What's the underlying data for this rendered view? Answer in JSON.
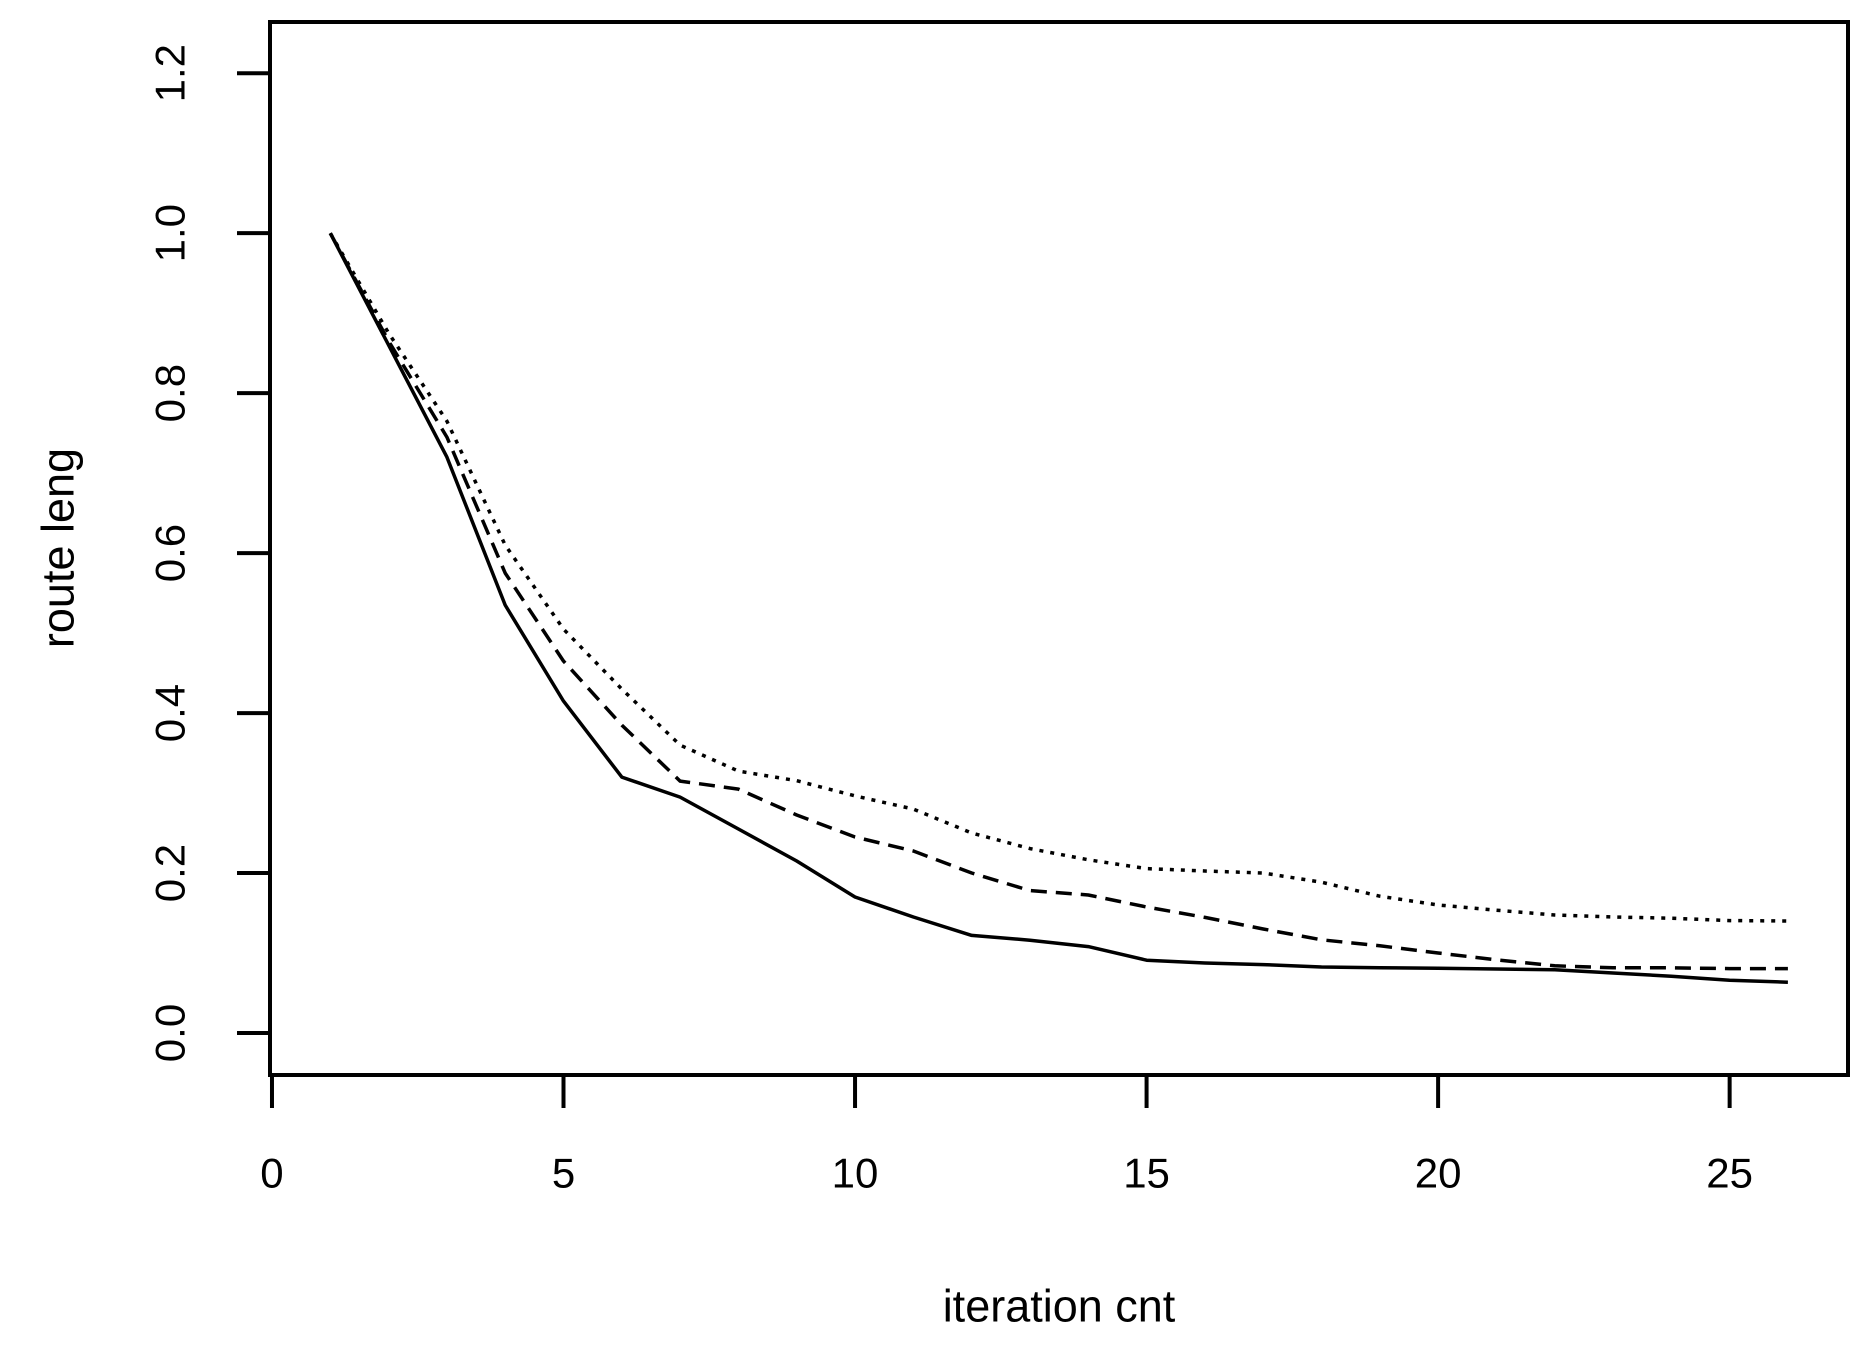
{
  "figure": {
    "background_color": "#ffffff",
    "line_color": "#000000",
    "text_color": "#000000"
  },
  "chart_data": {
    "type": "line",
    "title": "",
    "xlabel": "iteration cnt",
    "ylabel": "route leng",
    "grid": false,
    "legend": false,
    "xlim": [
      -0.034,
      27.03
    ],
    "ylim": [
      -0.0525,
      1.264
    ],
    "x_ticks": [
      0,
      5,
      10,
      15,
      20,
      25
    ],
    "y_ticks": [
      "0.0",
      "0.2",
      "0.4",
      "0.6",
      "0.8",
      "1.0",
      "1.2"
    ],
    "x": [
      1,
      2,
      3,
      4,
      5,
      6,
      7,
      8,
      9,
      10,
      11,
      12,
      13,
      14,
      15,
      16,
      17,
      18,
      19,
      20,
      21,
      22,
      23,
      24,
      25,
      26
    ],
    "series": [
      {
        "name": "solid",
        "line_style": "solid",
        "color": "#000000",
        "values": [
          1.0,
          0.86,
          0.72,
          0.535,
          0.415,
          0.32,
          0.295,
          0.255,
          0.215,
          0.17,
          0.145,
          0.122,
          0.116,
          0.108,
          0.091,
          0.0875,
          0.0855,
          0.0825,
          0.0815,
          0.081,
          0.08,
          0.079,
          0.075,
          0.071,
          0.066,
          0.0635
        ]
      },
      {
        "name": "dashed",
        "line_style": "dashed",
        "color": "#000000",
        "values": [
          1.0,
          0.865,
          0.745,
          0.575,
          0.465,
          0.385,
          0.315,
          0.305,
          0.2725,
          0.245,
          0.2275,
          0.2,
          0.178,
          0.1725,
          0.1575,
          0.1445,
          0.13,
          0.1165,
          0.109,
          0.1,
          0.0915,
          0.084,
          0.0815,
          0.0815,
          0.0805,
          0.0805
        ]
      },
      {
        "name": "dotted",
        "line_style": "dotted",
        "color": "#000000",
        "values": [
          1.0,
          0.875,
          0.765,
          0.61,
          0.505,
          0.43,
          0.36,
          0.3275,
          0.3155,
          0.2965,
          0.28,
          0.25,
          0.2305,
          0.2165,
          0.2055,
          0.2025,
          0.2,
          0.1885,
          0.171,
          0.16,
          0.1535,
          0.1475,
          0.145,
          0.1435,
          0.1405,
          0.14
        ]
      }
    ]
  }
}
